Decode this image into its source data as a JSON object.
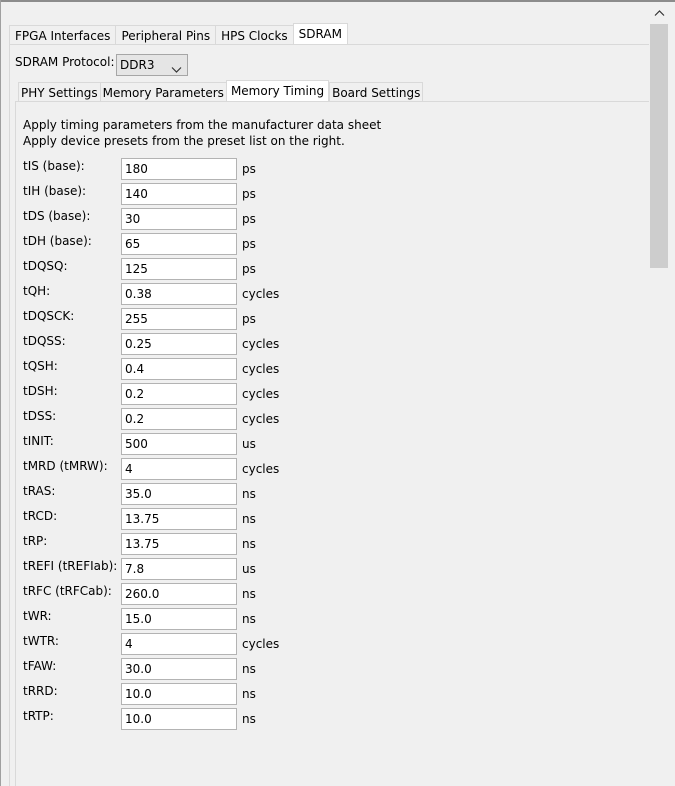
{
  "outer_tabs": [
    "FPGA Interfaces",
    "Peripheral Pins",
    "HPS Clocks",
    "SDRAM"
  ],
  "outer_active": 3,
  "protocol": {
    "label": "SDRAM Protocol:",
    "value": "DDR3"
  },
  "inner_tabs": [
    "PHY Settings",
    "Memory Parameters",
    "Memory Timing",
    "Board Settings"
  ],
  "inner_active": 2,
  "description": {
    "line1": "Apply timing parameters from the manufacturer data sheet",
    "line2": "Apply device presets from the preset list on the right."
  },
  "params": [
    {
      "label": "tIS (base):",
      "value": "180",
      "unit": "ps"
    },
    {
      "label": "tIH (base):",
      "value": "140",
      "unit": "ps"
    },
    {
      "label": "tDS (base):",
      "value": "30",
      "unit": "ps"
    },
    {
      "label": "tDH (base):",
      "value": "65",
      "unit": "ps"
    },
    {
      "label": "tDQSQ:",
      "value": "125",
      "unit": "ps"
    },
    {
      "label": "tQH:",
      "value": "0.38",
      "unit": "cycles"
    },
    {
      "label": "tDQSCK:",
      "value": "255",
      "unit": "ps"
    },
    {
      "label": "tDQSS:",
      "value": "0.25",
      "unit": "cycles"
    },
    {
      "label": "tQSH:",
      "value": "0.4",
      "unit": "cycles"
    },
    {
      "label": "tDSH:",
      "value": "0.2",
      "unit": "cycles"
    },
    {
      "label": "tDSS:",
      "value": "0.2",
      "unit": "cycles"
    },
    {
      "label": "tINIT:",
      "value": "500",
      "unit": "us"
    },
    {
      "label": "tMRD (tMRW):",
      "value": "4",
      "unit": "cycles"
    },
    {
      "label": "tRAS:",
      "value": "35.0",
      "unit": "ns"
    },
    {
      "label": "tRCD:",
      "value": "13.75",
      "unit": "ns"
    },
    {
      "label": "tRP:",
      "value": "13.75",
      "unit": "ns"
    },
    {
      "label": "tREFI (tREFIab):",
      "value": "7.8",
      "unit": "us"
    },
    {
      "label": "tRFC (tRFCab):",
      "value": "260.0",
      "unit": "ns"
    },
    {
      "label": "tWR:",
      "value": "15.0",
      "unit": "ns"
    },
    {
      "label": "tWTR:",
      "value": "4",
      "unit": "cycles"
    },
    {
      "label": "tFAW:",
      "value": "30.0",
      "unit": "ns"
    },
    {
      "label": "tRRD:",
      "value": "10.0",
      "unit": "ns"
    },
    {
      "label": "tRTP:",
      "value": "10.0",
      "unit": "ns"
    }
  ]
}
